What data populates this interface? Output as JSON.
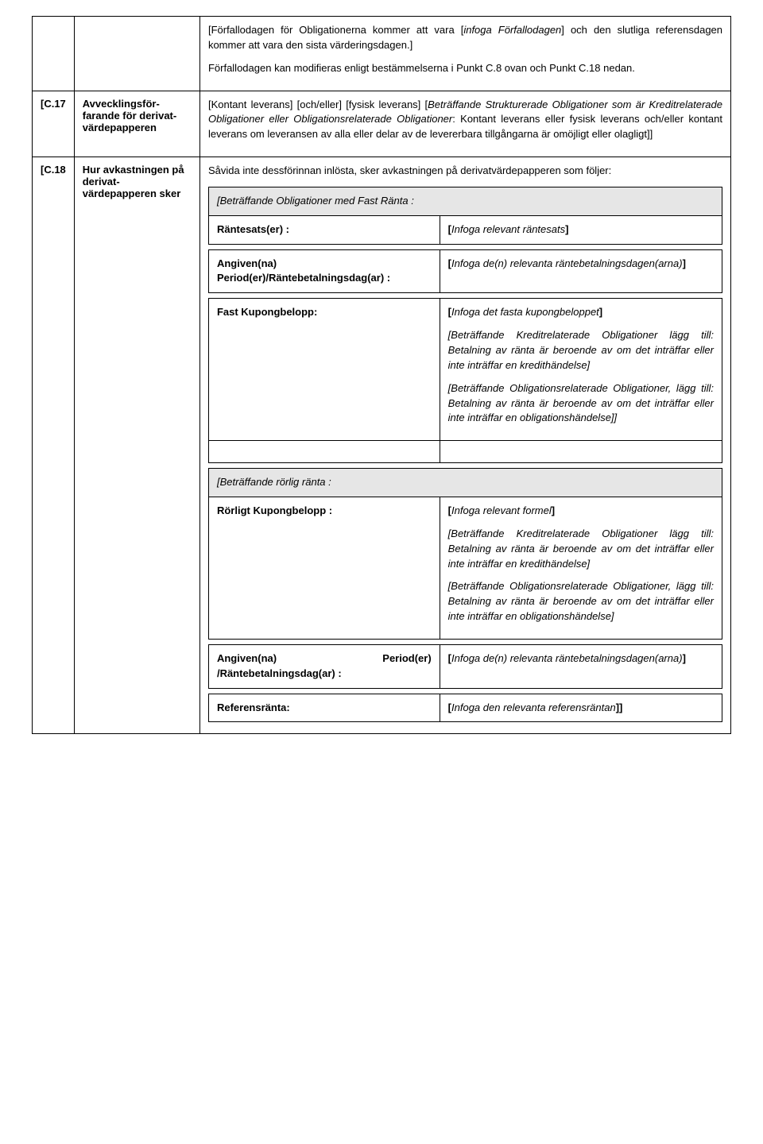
{
  "row0": {
    "para1_pre": "[Förfallodagen för Obligationerna kommer att vara [",
    "para1_it": "infoga Förfallodagen",
    "para1_post": "] och den slutliga referensdagen kommer att vara den sista värderingsdagen.]",
    "para2": "Förfallodagen kan modifieras enligt bestämmelserna i Punkt C.8 ovan och Punkt C.18 nedan."
  },
  "row1": {
    "ref": "[C.17",
    "title": "Avvecklingsför-farande för derivat-värdepapperen",
    "body_pre": "[Kontant leverans] [och/eller] [fysisk leverans] [",
    "body_it": "Beträffande Strukturerade Obligationer som är Kreditrelaterade Obligationer eller Obligationsrelaterade Obligationer",
    "body_post": ": Kontant leverans eller fysisk leverans och/eller kontant leverans om leveransen av alla eller delar av de levererbara tillgångarna är omöjligt eller olagligt]]"
  },
  "row2": {
    "ref": "[C.18",
    "title": "Hur avkastningen på derivat-värdepapperen sker",
    "intro": "Såvida inte dessförinnan inlösta, sker avkastningen på derivatvärdepapperen som följer:",
    "t1": {
      "header": "[Beträffande Obligationer med Fast Ränta :",
      "r1_l": "Räntesats(er) :",
      "r1_r_pre": "[",
      "r1_r_it": "Infoga relevant räntesats",
      "r1_r_post": "]",
      "r2_l": "Angiven(na) Period(er)/Räntebetalningsdag(ar) :",
      "r2_r_pre": "[",
      "r2_r_it1": "Infoga de(n) relevanta räntebetalningsdagen(arna)",
      "r2_r_post": "]",
      "r3_l": "Fast Kupongbelopp:",
      "r3_r_p1_pre": "[",
      "r3_r_p1_it": "Infoga det fasta kupongbeloppet",
      "r3_r_p1_post": "]",
      "r3_r_p2": "[Beträffande Kreditrelaterade Obligationer lägg till: Betalning av ränta är beroende av om det inträffar eller inte inträffar en kredithändelse]",
      "r3_r_p3": "[Beträffande Obligationsrelaterade Obligationer, lägg till: Betalning av ränta är beroende av om det inträffar eller inte inträffar en obligationshändelse]]"
    },
    "t2": {
      "header": "[Beträffande rörlig ränta :",
      "r1_l": "Rörligt Kupongbelopp :",
      "r1_r_p1_pre": "[",
      "r1_r_p1_it": "Infoga relevant formel",
      "r1_r_p1_post": "]",
      "r1_r_p2": "[Beträffande Kreditrelaterade Obligationer lägg till: Betalning av ränta är beroende av om det inträffar eller inte inträffar en kredithändelse]",
      "r1_r_p3": "[Beträffande Obligationsrelaterade Obligationer, lägg till: Betalning av ränta är beroende av om det inträffar eller inte inträffar en obligationshändelse]",
      "r2_l": "Angiven(na) Period(er) /Räntebetalningsdag(ar) :",
      "r2_r_pre": "[",
      "r2_r_it": "Infoga de(n) relevanta räntebetalningsdagen(arna)",
      "r2_r_post": "]",
      "r3_l": "Referensränta:",
      "r3_r_pre": "[",
      "r3_r_it": "Infoga den relevanta referensräntan",
      "r3_r_post": "]]"
    }
  }
}
